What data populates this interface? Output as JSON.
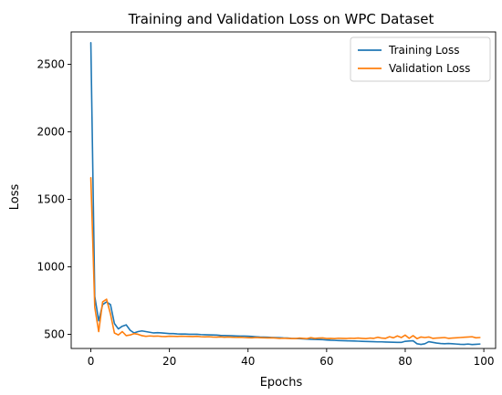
{
  "chart_data": {
    "type": "line",
    "title": "Training and Validation Loss on WPC Dataset",
    "xlabel": "Epochs",
    "ylabel": "Loss",
    "xlim": [
      -5,
      103
    ],
    "ylim": [
      395,
      2740
    ],
    "xticks": [
      0,
      20,
      40,
      60,
      80,
      100
    ],
    "yticks": [
      500,
      1000,
      1500,
      2000,
      2500
    ],
    "grid": false,
    "legend_position": "top-right",
    "series": [
      {
        "name": "Training Loss",
        "color": "#1f77b4",
        "x": [
          0,
          1,
          2,
          3,
          4,
          5,
          6,
          7,
          8,
          9,
          10,
          11,
          12,
          13,
          14,
          15,
          16,
          17,
          18,
          19,
          20,
          21,
          22,
          23,
          24,
          25,
          26,
          27,
          28,
          29,
          30,
          31,
          32,
          33,
          34,
          35,
          36,
          37,
          38,
          39,
          40,
          41,
          42,
          43,
          44,
          45,
          46,
          47,
          48,
          49,
          50,
          51,
          52,
          53,
          54,
          55,
          56,
          57,
          58,
          59,
          60,
          61,
          62,
          63,
          64,
          65,
          66,
          67,
          68,
          69,
          70,
          71,
          72,
          73,
          74,
          75,
          76,
          77,
          78,
          79,
          80,
          81,
          82,
          83,
          84,
          85,
          86,
          87,
          88,
          89,
          90,
          91,
          92,
          93,
          94,
          95,
          96,
          97,
          98,
          99
        ],
        "values": [
          2660,
          780,
          600,
          720,
          740,
          720,
          580,
          540,
          560,
          570,
          530,
          510,
          520,
          525,
          520,
          515,
          510,
          512,
          510,
          508,
          505,
          505,
          503,
          502,
          502,
          500,
          500,
          500,
          498,
          497,
          496,
          495,
          494,
          492,
          491,
          490,
          489,
          488,
          487,
          487,
          486,
          484,
          482,
          480,
          479,
          478,
          477,
          476,
          475,
          473,
          472,
          470,
          469,
          468,
          466,
          465,
          463,
          462,
          461,
          460,
          458,
          456,
          455,
          454,
          453,
          452,
          451,
          450,
          449,
          448,
          447,
          446,
          445,
          444,
          444,
          443,
          442,
          441,
          440,
          440,
          448,
          450,
          452,
          430,
          425,
          430,
          445,
          440,
          435,
          432,
          430,
          432,
          430,
          428,
          426,
          425,
          428,
          424,
          426,
          428
        ]
      },
      {
        "name": "Validation Loss",
        "color": "#ff7f0e",
        "x": [
          0,
          1,
          2,
          3,
          4,
          5,
          6,
          7,
          8,
          9,
          10,
          11,
          12,
          13,
          14,
          15,
          16,
          17,
          18,
          19,
          20,
          21,
          22,
          23,
          24,
          25,
          26,
          27,
          28,
          29,
          30,
          31,
          32,
          33,
          34,
          35,
          36,
          37,
          38,
          39,
          40,
          41,
          42,
          43,
          44,
          45,
          46,
          47,
          48,
          49,
          50,
          51,
          52,
          53,
          54,
          55,
          56,
          57,
          58,
          59,
          60,
          61,
          62,
          63,
          64,
          65,
          66,
          67,
          68,
          69,
          70,
          71,
          72,
          73,
          74,
          75,
          76,
          77,
          78,
          79,
          80,
          81,
          82,
          83,
          84,
          85,
          86,
          87,
          88,
          89,
          90,
          91,
          92,
          93,
          94,
          95,
          96,
          97,
          98,
          99
        ],
        "values": [
          1660,
          700,
          520,
          740,
          760,
          650,
          510,
          495,
          520,
          490,
          495,
          505,
          500,
          490,
          485,
          488,
          486,
          487,
          484,
          483,
          486,
          485,
          484,
          486,
          485,
          484,
          483,
          485,
          482,
          481,
          482,
          480,
          479,
          481,
          478,
          480,
          478,
          477,
          478,
          476,
          475,
          474,
          476,
          475,
          474,
          473,
          474,
          472,
          470,
          471,
          470,
          469,
          468,
          472,
          470,
          468,
          475,
          470,
          472,
          473,
          469,
          470,
          468,
          471,
          470,
          469,
          471,
          470,
          472,
          470,
          468,
          472,
          470,
          478,
          472,
          470,
          482,
          474,
          488,
          476,
          494,
          470,
          490,
          468,
          480,
          476,
          480,
          470,
          472,
          474,
          476,
          470,
          472,
          474,
          476,
          478,
          480,
          482,
          474,
          476
        ]
      }
    ]
  }
}
